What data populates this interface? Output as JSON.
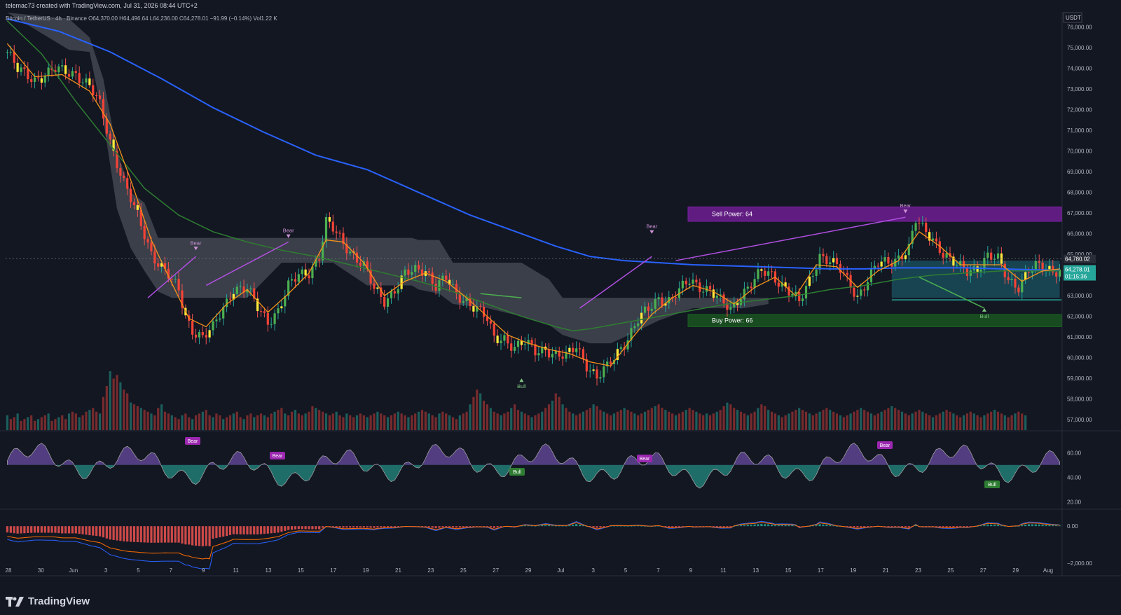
{
  "header": {
    "author_line": "telemac73 created with TradingView.com, Jul 31, 2026 08:44 UTC+2",
    "symbol": "Bitcoin / TetherUS · 4h · Binance",
    "ohlc": {
      "open": "O64,370.00",
      "high": "H64,496.64",
      "low": "L64,236.00",
      "close": "C64,278.01",
      "change": "−91.99 (−0.14%)",
      "volume": "Vol1.22 K"
    },
    "currency": "USDT"
  },
  "footer": {
    "brand": "TradingView"
  },
  "colors": {
    "bg": "#131722",
    "up": "#26a69a",
    "down": "#ef5350",
    "ema_fast": "#f7931a",
    "sma_mid": "#2e7d32",
    "sma_slow": "#2962ff",
    "purple": "#9c27b0",
    "green_zone": "#4caf50"
  },
  "chart_data": {
    "type": "candlestick",
    "timeframe": "4h",
    "x_ticks": [
      "28",
      "30",
      "Jun",
      "3",
      "5",
      "7",
      "9",
      "11",
      "13",
      "15",
      "17",
      "19",
      "21",
      "23",
      "25",
      "27",
      "29",
      "Jul",
      "3",
      "5",
      "7",
      "9",
      "11",
      "13",
      "15",
      "17",
      "19",
      "21",
      "23",
      "25",
      "27",
      "29",
      "Aug"
    ],
    "price_axis": {
      "ticks": [
        "76,000.00",
        "75,000.00",
        "74,000.00",
        "73,000.00",
        "72,000.00",
        "71,000.00",
        "70,000.00",
        "69,000.00",
        "68,000.00",
        "67,000.00",
        "66,000.00",
        "65,000.00",
        "63,000.00",
        "62,000.00",
        "61,000.00",
        "60,000.00",
        "59,000.00",
        "58,000.00",
        "57,000.00"
      ],
      "ylim": [
        56500,
        76700
      ]
    },
    "price_labels": {
      "last_price": "64,278.01",
      "countdown": "01:15:36",
      "line_price": "64,780.02"
    },
    "close_path": [
      [
        0,
        74800
      ],
      [
        3,
        73900
      ],
      [
        8,
        73500
      ],
      [
        14,
        73900
      ],
      [
        20,
        73800
      ],
      [
        24,
        73100
      ],
      [
        27,
        72200
      ],
      [
        30,
        70500
      ],
      [
        34,
        68500
      ],
      [
        38,
        66800
      ],
      [
        42,
        65100
      ],
      [
        46,
        64200
      ],
      [
        50,
        63200
      ],
      [
        52,
        62000
      ],
      [
        54,
        61400
      ],
      [
        57,
        61000
      ],
      [
        60,
        61400
      ],
      [
        63,
        62400
      ],
      [
        66,
        63400
      ],
      [
        70,
        63300
      ],
      [
        73,
        62400
      ],
      [
        76,
        61800
      ],
      [
        79,
        62300
      ],
      [
        82,
        63400
      ],
      [
        85,
        64000
      ],
      [
        88,
        64200
      ],
      [
        91,
        64900
      ],
      [
        93,
        66500
      ],
      [
        95,
        66200
      ],
      [
        98,
        65600
      ],
      [
        101,
        65000
      ],
      [
        104,
        64400
      ],
      [
        107,
        63300
      ],
      [
        110,
        62800
      ],
      [
        113,
        63300
      ],
      [
        116,
        64000
      ],
      [
        119,
        64200
      ],
      [
        122,
        64300
      ],
      [
        125,
        63500
      ],
      [
        128,
        63800
      ],
      [
        131,
        63000
      ],
      [
        134,
        62800
      ],
      [
        137,
        62400
      ],
      [
        140,
        61800
      ],
      [
        142,
        60900
      ],
      [
        145,
        61000
      ],
      [
        148,
        60500
      ],
      [
        151,
        60700
      ],
      [
        154,
        60300
      ],
      [
        157,
        60500
      ],
      [
        160,
        60100
      ],
      [
        163,
        60000
      ],
      [
        166,
        60600
      ],
      [
        169,
        59700
      ],
      [
        172,
        59000
      ],
      [
        175,
        59500
      ],
      [
        178,
        60300
      ],
      [
        181,
        61000
      ],
      [
        184,
        61800
      ],
      [
        187,
        62300
      ],
      [
        190,
        62900
      ],
      [
        193,
        62800
      ],
      [
        196,
        63200
      ],
      [
        199,
        63700
      ],
      [
        202,
        63500
      ],
      [
        205,
        63300
      ],
      [
        208,
        62700
      ],
      [
        211,
        62300
      ],
      [
        214,
        63100
      ],
      [
        217,
        63600
      ],
      [
        220,
        64100
      ],
      [
        223,
        64000
      ],
      [
        226,
        63600
      ],
      [
        229,
        63100
      ],
      [
        231,
        62600
      ],
      [
        234,
        63700
      ],
      [
        237,
        65000
      ],
      [
        240,
        64700
      ],
      [
        243,
        64200
      ],
      [
        246,
        63500
      ],
      [
        248,
        63000
      ],
      [
        251,
        63800
      ],
      [
        254,
        64500
      ],
      [
        257,
        64600
      ],
      [
        260,
        64900
      ],
      [
        263,
        65300
      ],
      [
        265,
        66600
      ],
      [
        267,
        66200
      ],
      [
        270,
        65800
      ],
      [
        273,
        65100
      ],
      [
        275,
        64700
      ],
      [
        277,
        64400
      ],
      [
        280,
        64200
      ],
      [
        283,
        64400
      ],
      [
        286,
        64900
      ],
      [
        289,
        64700
      ],
      [
        292,
        63800
      ],
      [
        295,
        63500
      ],
      [
        298,
        64200
      ],
      [
        301,
        64400
      ],
      [
        304,
        64300
      ],
      [
        307,
        64278
      ]
    ],
    "ema_fast": [
      [
        0,
        75200
      ],
      [
        8,
        73600
      ],
      [
        16,
        73700
      ],
      [
        24,
        72900
      ],
      [
        30,
        71300
      ],
      [
        36,
        68600
      ],
      [
        42,
        65700
      ],
      [
        48,
        63600
      ],
      [
        53,
        61900
      ],
      [
        58,
        61500
      ],
      [
        64,
        62600
      ],
      [
        70,
        63300
      ],
      [
        76,
        62200
      ],
      [
        82,
        63100
      ],
      [
        88,
        64100
      ],
      [
        93,
        65700
      ],
      [
        98,
        65600
      ],
      [
        104,
        64600
      ],
      [
        110,
        63000
      ],
      [
        116,
        63700
      ],
      [
        122,
        64100
      ],
      [
        128,
        63700
      ],
      [
        134,
        62900
      ],
      [
        140,
        62000
      ],
      [
        146,
        61100
      ],
      [
        152,
        60700
      ],
      [
        158,
        60400
      ],
      [
        164,
        60200
      ],
      [
        170,
        59800
      ],
      [
        176,
        59600
      ],
      [
        182,
        60900
      ],
      [
        188,
        62100
      ],
      [
        194,
        62900
      ],
      [
        200,
        63500
      ],
      [
        206,
        63200
      ],
      [
        212,
        62600
      ],
      [
        218,
        63400
      ],
      [
        224,
        63900
      ],
      [
        230,
        63000
      ],
      [
        236,
        64500
      ],
      [
        242,
        64400
      ],
      [
        248,
        63400
      ],
      [
        254,
        64200
      ],
      [
        260,
        64700
      ],
      [
        266,
        66100
      ],
      [
        272,
        65400
      ],
      [
        278,
        64500
      ],
      [
        284,
        64500
      ],
      [
        290,
        64500
      ],
      [
        296,
        63700
      ],
      [
        302,
        64200
      ],
      [
        307,
        64300
      ]
    ],
    "sma_mid": [
      [
        0,
        76300
      ],
      [
        10,
        74700
      ],
      [
        20,
        72400
      ],
      [
        30,
        70300
      ],
      [
        40,
        68200
      ],
      [
        50,
        66900
      ],
      [
        60,
        66100
      ],
      [
        70,
        65600
      ],
      [
        80,
        65200
      ],
      [
        90,
        64900
      ],
      [
        100,
        64500
      ],
      [
        110,
        64100
      ],
      [
        120,
        63700
      ],
      [
        130,
        63200
      ],
      [
        140,
        62600
      ],
      [
        150,
        62000
      ],
      [
        160,
        61500
      ],
      [
        165,
        61300
      ],
      [
        170,
        61400
      ],
      [
        180,
        61700
      ],
      [
        190,
        62000
      ],
      [
        200,
        62300
      ],
      [
        210,
        62600
      ],
      [
        220,
        62800
      ],
      [
        230,
        63000
      ],
      [
        240,
        63300
      ],
      [
        250,
        63500
      ],
      [
        260,
        63800
      ],
      [
        270,
        64000
      ],
      [
        280,
        64100
      ],
      [
        290,
        64200
      ],
      [
        300,
        64200
      ],
      [
        307,
        64200
      ]
    ],
    "sma_slow": [
      [
        0,
        76400
      ],
      [
        15,
        75800
      ],
      [
        30,
        74800
      ],
      [
        45,
        73500
      ],
      [
        60,
        72100
      ],
      [
        75,
        70900
      ],
      [
        90,
        69800
      ],
      [
        105,
        69100
      ],
      [
        120,
        68000
      ],
      [
        135,
        66900
      ],
      [
        150,
        66000
      ],
      [
        160,
        65400
      ],
      [
        170,
        64900
      ],
      [
        180,
        64700
      ],
      [
        190,
        64600
      ],
      [
        200,
        64500
      ],
      [
        210,
        64450
      ],
      [
        220,
        64400
      ],
      [
        230,
        64350
      ],
      [
        240,
        64300
      ],
      [
        250,
        64300
      ],
      [
        260,
        64350
      ],
      [
        270,
        64350
      ],
      [
        280,
        64350
      ],
      [
        290,
        64300
      ],
      [
        300,
        64250
      ],
      [
        307,
        64230
      ]
    ],
    "cloud_band": [
      [
        0,
        76700,
        76700
      ],
      [
        18,
        76400,
        74900
      ],
      [
        24,
        75500,
        74800
      ],
      [
        28,
        73500,
        71500
      ],
      [
        32,
        70000,
        67200
      ],
      [
        36,
        68000,
        65300
      ],
      [
        40,
        67500,
        64200
      ],
      [
        44,
        65800,
        63200
      ],
      [
        48,
        65800,
        62900
      ],
      [
        70,
        65800,
        62900
      ],
      [
        80,
        65800,
        64600
      ],
      [
        95,
        65800,
        64600
      ],
      [
        105,
        65800,
        63500
      ],
      [
        118,
        65800,
        63500
      ],
      [
        120,
        65700,
        63300
      ],
      [
        126,
        65700,
        63100
      ],
      [
        130,
        64600,
        62600
      ],
      [
        140,
        64600,
        62400
      ],
      [
        150,
        64600,
        62000
      ],
      [
        158,
        63800,
        61600
      ],
      [
        162,
        62900,
        61100
      ],
      [
        166,
        62900,
        60900
      ],
      [
        170,
        62900,
        60700
      ],
      [
        176,
        62900,
        60700
      ],
      [
        180,
        62900,
        61000
      ],
      [
        190,
        62900,
        61800
      ],
      [
        200,
        62900,
        62400
      ],
      [
        215,
        62900,
        62400
      ],
      [
        222,
        62900,
        62600
      ]
    ],
    "bands": [
      {
        "label": "Sell Power: 64",
        "top": 67300,
        "bottom": 66600,
        "color": "#7b1fa2"
      },
      {
        "label": "Buy Power: 66",
        "top": 62100,
        "bottom": 61500,
        "color": "#1b5e20"
      }
    ],
    "box_teal": {
      "from": 258,
      "to": 307,
      "top": 64700,
      "bottom": 62900
    },
    "signals": [
      {
        "label": "Bear",
        "i": 55,
        "price": 65200
      },
      {
        "label": "Bear",
        "i": 82,
        "price": 65800
      },
      {
        "label": "Bear",
        "i": 188,
        "price": 66000
      },
      {
        "label": "Bear",
        "i": 262,
        "price": 67000
      },
      {
        "label": "Bull",
        "i": 150,
        "price": 59000
      },
      {
        "label": "Bull",
        "i": 285,
        "price": 62400
      }
    ],
    "volume": [
      8,
      6,
      7,
      9,
      5,
      6,
      7,
      8,
      5,
      6,
      7,
      8,
      9,
      5,
      6,
      7,
      8,
      6,
      9,
      10,
      9,
      7,
      8,
      10,
      11,
      12,
      10,
      9,
      18,
      24,
      32,
      28,
      30,
      26,
      22,
      20,
      15,
      14,
      13,
      12,
      11,
      10,
      9,
      8,
      12,
      14,
      10,
      9,
      8,
      7,
      6,
      8,
      9,
      7,
      6,
      8,
      9,
      10,
      11,
      8,
      7,
      9,
      8,
      6,
      7,
      8,
      9,
      10,
      7,
      6,
      8,
      9,
      7,
      8,
      9,
      8,
      7,
      9,
      10,
      11,
      12,
      9,
      8,
      10,
      11,
      9,
      8,
      9,
      10,
      13,
      12,
      11,
      10,
      9,
      8,
      9,
      10,
      8,
      7,
      9,
      8,
      7,
      8,
      9,
      8,
      7,
      8,
      9,
      10,
      9,
      8,
      7,
      8,
      9,
      10,
      9,
      8,
      7,
      8,
      9,
      10,
      11,
      10,
      9,
      8,
      7,
      9,
      10,
      9,
      8,
      7,
      6,
      8,
      9,
      10,
      14,
      18,
      22,
      20,
      16,
      14,
      12,
      10,
      9,
      8,
      9,
      10,
      12,
      14,
      11,
      10,
      9,
      8,
      7,
      8,
      9,
      10,
      12,
      14,
      16,
      20,
      18,
      14,
      12,
      10,
      9,
      8,
      9,
      10,
      11,
      12,
      14,
      13,
      11,
      10,
      9,
      8,
      9,
      10,
      11,
      12,
      11,
      10,
      9,
      8,
      9,
      10,
      11,
      12,
      13,
      14,
      12,
      11,
      10,
      9,
      8,
      9,
      10,
      11,
      12,
      11,
      10,
      9,
      8,
      9,
      8,
      9,
      10,
      11,
      13,
      15,
      14,
      12,
      11,
      10,
      9,
      8,
      9,
      10,
      12,
      14,
      13,
      11,
      10,
      9,
      8,
      7,
      8,
      9,
      10,
      11,
      12,
      11,
      10,
      9,
      8,
      9,
      10,
      11,
      12,
      11,
      10,
      9,
      8,
      7,
      8,
      9,
      10,
      11,
      12,
      11,
      10,
      9,
      8,
      9,
      10,
      11,
      12,
      13,
      12,
      11,
      10,
      9,
      8,
      9,
      10,
      11,
      10,
      9,
      8,
      7,
      8,
      9,
      10,
      11,
      10,
      9,
      8,
      7,
      8,
      9,
      10,
      9,
      8,
      7,
      8,
      9,
      10,
      11,
      10,
      9,
      8,
      7,
      8,
      9,
      10,
      9,
      8
    ],
    "rsi": {
      "ticks": [
        "60.00",
        "40.00",
        "20.00"
      ],
      "ylim": [
        15,
        75
      ],
      "labels": [
        "Bear",
        "Bear",
        "Bull",
        "Bear",
        "Bear",
        "Bull"
      ]
    },
    "macd": {
      "ticks": [
        "0.00",
        "−2,000.00"
      ],
      "ylim": [
        -2600,
        800
      ]
    }
  }
}
